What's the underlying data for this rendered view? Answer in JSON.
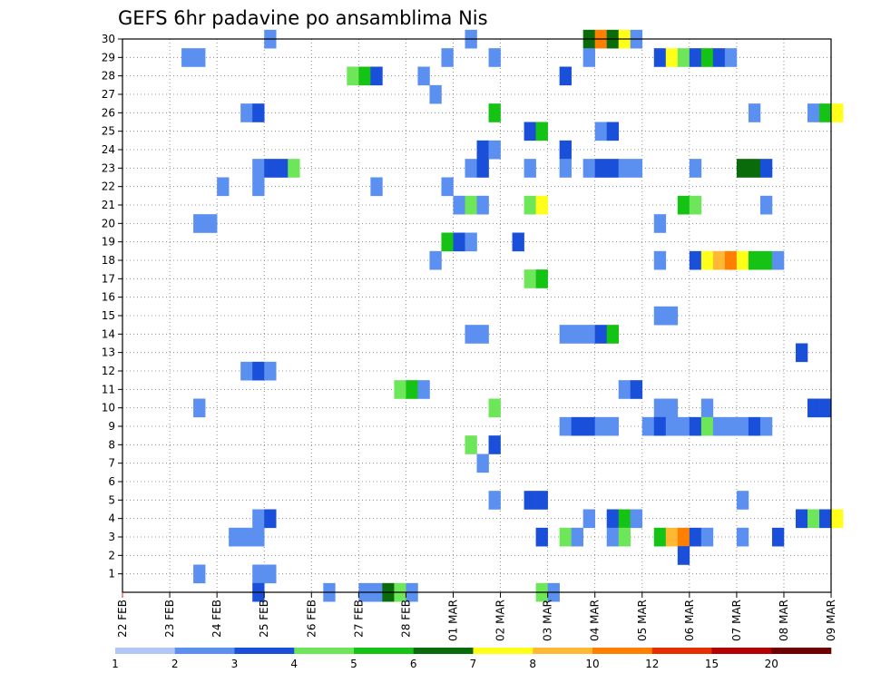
{
  "chart_data": {
    "type": "heatmap",
    "title": "GEFS 6hr padavine po ansamblima Nis",
    "xlabel": "",
    "ylabel": "",
    "x_tick_labels": [
      "22 FEB",
      "23 FEB",
      "24 FEB",
      "25 FEB",
      "26 FEB",
      "27 FEB",
      "28 FEB",
      "01 MAR",
      "02 MAR",
      "03 MAR",
      "04 MAR",
      "05 MAR",
      "06 MAR",
      "07 MAR",
      "08 MAR",
      "09 MAR"
    ],
    "x_steps_per_day": 4,
    "y_tick_labels": [
      "1",
      "2",
      "3",
      "4",
      "5",
      "6",
      "7",
      "8",
      "9",
      "10",
      "11",
      "12",
      "13",
      "14",
      "15",
      "16",
      "17",
      "18",
      "19",
      "20",
      "21",
      "22",
      "23",
      "24",
      "25",
      "26",
      "27",
      "28",
      "29",
      "30"
    ],
    "ylim": [
      0,
      30
    ],
    "grid": true,
    "colorbar": {
      "labels": [
        "1",
        "2",
        "3",
        "4",
        "5",
        "6",
        "7",
        "8",
        "10",
        "12",
        "15",
        "20"
      ],
      "colors": [
        "#b3c7f7",
        "#5b8ff0",
        "#1a4fd9",
        "#6ee65a",
        "#15c315",
        "#0a6b0a",
        "#ffff1a",
        "#ffb833",
        "#ff8000",
        "#e62e00",
        "#b30000",
        "#6e0000"
      ]
    },
    "cells": [
      [
        12,
        30,
        1
      ],
      [
        29,
        30,
        1
      ],
      [
        39,
        30,
        5
      ],
      [
        40,
        30,
        8
      ],
      [
        41,
        30,
        5
      ],
      [
        42,
        30,
        6
      ],
      [
        43,
        30,
        1
      ],
      [
        5,
        29,
        1
      ],
      [
        6,
        29,
        1
      ],
      [
        27,
        29,
        1
      ],
      [
        31,
        29,
        1
      ],
      [
        39,
        29,
        1
      ],
      [
        45,
        29,
        2
      ],
      [
        46,
        29,
        6
      ],
      [
        47,
        29,
        3
      ],
      [
        48,
        29,
        2
      ],
      [
        49,
        29,
        4
      ],
      [
        50,
        29,
        2
      ],
      [
        51,
        29,
        1
      ],
      [
        19,
        28,
        3
      ],
      [
        20,
        28,
        4
      ],
      [
        21,
        28,
        2
      ],
      [
        25,
        28,
        1
      ],
      [
        37,
        28,
        2
      ],
      [
        26,
        27,
        1
      ],
      [
        10,
        26,
        1
      ],
      [
        11,
        26,
        2
      ],
      [
        31,
        26,
        4
      ],
      [
        53,
        26,
        1
      ],
      [
        58,
        26,
        1
      ],
      [
        59,
        26,
        4
      ],
      [
        60,
        26,
        6
      ],
      [
        34,
        25,
        2
      ],
      [
        35,
        25,
        4
      ],
      [
        40,
        25,
        1
      ],
      [
        41,
        25,
        2
      ],
      [
        30,
        24,
        2
      ],
      [
        31,
        24,
        1
      ],
      [
        37,
        24,
        2
      ],
      [
        11,
        23,
        1
      ],
      [
        12,
        23,
        2
      ],
      [
        13,
        23,
        2
      ],
      [
        14,
        23,
        3
      ],
      [
        29,
        23,
        1
      ],
      [
        30,
        23,
        2
      ],
      [
        34,
        23,
        1
      ],
      [
        37,
        23,
        1
      ],
      [
        39,
        23,
        1
      ],
      [
        40,
        23,
        2
      ],
      [
        41,
        23,
        2
      ],
      [
        42,
        23,
        1
      ],
      [
        43,
        23,
        1
      ],
      [
        48,
        23,
        1
      ],
      [
        52,
        23,
        5
      ],
      [
        53,
        23,
        5
      ],
      [
        54,
        23,
        2
      ],
      [
        8,
        22,
        1
      ],
      [
        11,
        22,
        1
      ],
      [
        21,
        22,
        1
      ],
      [
        27,
        22,
        1
      ],
      [
        28,
        21,
        1
      ],
      [
        29,
        21,
        3
      ],
      [
        30,
        21,
        1
      ],
      [
        34,
        21,
        3
      ],
      [
        35,
        21,
        6
      ],
      [
        47,
        21,
        4
      ],
      [
        48,
        21,
        3
      ],
      [
        54,
        21,
        1
      ],
      [
        6,
        20,
        1
      ],
      [
        7,
        20,
        1
      ],
      [
        45,
        20,
        1
      ],
      [
        27,
        19,
        4
      ],
      [
        28,
        19,
        2
      ],
      [
        29,
        19,
        1
      ],
      [
        33,
        19,
        2
      ],
      [
        26,
        18,
        1
      ],
      [
        45,
        18,
        1
      ],
      [
        48,
        18,
        2
      ],
      [
        49,
        18,
        6
      ],
      [
        50,
        18,
        7
      ],
      [
        51,
        18,
        8
      ],
      [
        52,
        18,
        6
      ],
      [
        53,
        18,
        4
      ],
      [
        54,
        18,
        4
      ],
      [
        55,
        18,
        1
      ],
      [
        34,
        17,
        3
      ],
      [
        35,
        17,
        4
      ],
      [
        45,
        15,
        1
      ],
      [
        46,
        15,
        1
      ],
      [
        29,
        14,
        1
      ],
      [
        30,
        14,
        1
      ],
      [
        37,
        14,
        1
      ],
      [
        38,
        14,
        1
      ],
      [
        39,
        14,
        1
      ],
      [
        40,
        14,
        2
      ],
      [
        41,
        14,
        4
      ],
      [
        57,
        13,
        2
      ],
      [
        10,
        12,
        1
      ],
      [
        11,
        12,
        2
      ],
      [
        12,
        12,
        1
      ],
      [
        23,
        11,
        3
      ],
      [
        24,
        11,
        4
      ],
      [
        25,
        11,
        1
      ],
      [
        42,
        11,
        1
      ],
      [
        43,
        11,
        2
      ],
      [
        6,
        10,
        1
      ],
      [
        31,
        10,
        3
      ],
      [
        45,
        10,
        1
      ],
      [
        46,
        10,
        1
      ],
      [
        49,
        10,
        1
      ],
      [
        58,
        10,
        2
      ],
      [
        59,
        10,
        2
      ],
      [
        37,
        9,
        1
      ],
      [
        38,
        9,
        2
      ],
      [
        39,
        9,
        2
      ],
      [
        40,
        9,
        1
      ],
      [
        41,
        9,
        1
      ],
      [
        44,
        9,
        1
      ],
      [
        45,
        9,
        2
      ],
      [
        46,
        9,
        1
      ],
      [
        47,
        9,
        1
      ],
      [
        48,
        9,
        2
      ],
      [
        49,
        9,
        3
      ],
      [
        50,
        9,
        1
      ],
      [
        51,
        9,
        1
      ],
      [
        52,
        9,
        1
      ],
      [
        53,
        9,
        2
      ],
      [
        54,
        9,
        1
      ],
      [
        29,
        8,
        3
      ],
      [
        31,
        8,
        2
      ],
      [
        30,
        7,
        1
      ],
      [
        31,
        5,
        1
      ],
      [
        34,
        5,
        2
      ],
      [
        35,
        5,
        2
      ],
      [
        52,
        5,
        1
      ],
      [
        11,
        4,
        1
      ],
      [
        12,
        4,
        2
      ],
      [
        39,
        4,
        1
      ],
      [
        41,
        4,
        2
      ],
      [
        42,
        4,
        4
      ],
      [
        43,
        4,
        1
      ],
      [
        57,
        4,
        2
      ],
      [
        58,
        4,
        3
      ],
      [
        59,
        4,
        2
      ],
      [
        60,
        4,
        6
      ],
      [
        9,
        3,
        1
      ],
      [
        10,
        3,
        1
      ],
      [
        11,
        3,
        1
      ],
      [
        35,
        3,
        2
      ],
      [
        37,
        3,
        3
      ],
      [
        38,
        3,
        1
      ],
      [
        41,
        3,
        1
      ],
      [
        42,
        3,
        3
      ],
      [
        45,
        3,
        4
      ],
      [
        46,
        3,
        7
      ],
      [
        47,
        3,
        8
      ],
      [
        48,
        3,
        2
      ],
      [
        49,
        3,
        1
      ],
      [
        52,
        3,
        1
      ],
      [
        55,
        3,
        2
      ],
      [
        47,
        2,
        2
      ],
      [
        6,
        1,
        1
      ],
      [
        11,
        1,
        1
      ],
      [
        12,
        1,
        1
      ],
      [
        11,
        0,
        2
      ],
      [
        17,
        0,
        1
      ],
      [
        20,
        0,
        1
      ],
      [
        21,
        0,
        1
      ],
      [
        22,
        0,
        5
      ],
      [
        23,
        0,
        3
      ],
      [
        24,
        0,
        1
      ],
      [
        35,
        0,
        3
      ],
      [
        36,
        0,
        1
      ]
    ]
  }
}
